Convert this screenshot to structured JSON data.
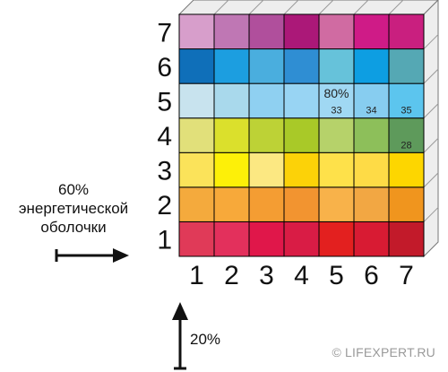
{
  "grid": {
    "row_labels": [
      "1",
      "2",
      "3",
      "4",
      "5",
      "6",
      "7"
    ],
    "col_labels": [
      "1",
      "2",
      "3",
      "4",
      "5",
      "6",
      "7"
    ],
    "colors": [
      [
        "#e03a58",
        "#e3305c",
        "#e0174a",
        "#d91c45",
        "#e3201f",
        "#d81b33",
        "#c21a2a"
      ],
      [
        "#f4aa3d",
        "#f7a93a",
        "#f49d33",
        "#f29430",
        "#f8b24a",
        "#f2a743",
        "#f0951e"
      ],
      [
        "#fbe35a",
        "#fdf008",
        "#fce882",
        "#fcd208",
        "#fee14a",
        "#fedb46",
        "#fdd600"
      ],
      [
        "#e1e07a",
        "#dbe02c",
        "#bdd236",
        "#a9c928",
        "#b6d26a",
        "#8dbf5a",
        "#5e9a5b"
      ],
      [
        "#c8e3ee",
        "#a9d9ec",
        "#8fd0f1",
        "#98d4f3",
        "#a0d8f3",
        "#87cdf0",
        "#5cc5ee"
      ],
      [
        "#0f6fb9",
        "#1c9ee0",
        "#4aaede",
        "#2f8ed3",
        "#66c2da",
        "#0d9ee2",
        "#55a8b4"
      ],
      [
        "#d79ecb",
        "#bf77b4",
        "#b04f9c",
        "#ab1878",
        "#d06ba2",
        "#cf1b87",
        "#c91f7f"
      ]
    ],
    "cell_notes": [
      {
        "row": 5,
        "col": 5,
        "big": "80%",
        "small": "33"
      },
      {
        "row": 5,
        "col": 6,
        "small": "34"
      },
      {
        "row": 5,
        "col": 7,
        "small": "35"
      },
      {
        "row": 4,
        "col": 7,
        "small": "28"
      }
    ]
  },
  "left_annotation": {
    "lines": [
      "60%",
      "энергетической",
      "оболочки"
    ]
  },
  "bottom_annotation": {
    "text": "20%"
  },
  "copyright": "© LIFEXPERT.RU",
  "colors": {
    "arrow": "#111111",
    "grid_line": "#000000",
    "depth_face": "#eeeeee"
  }
}
